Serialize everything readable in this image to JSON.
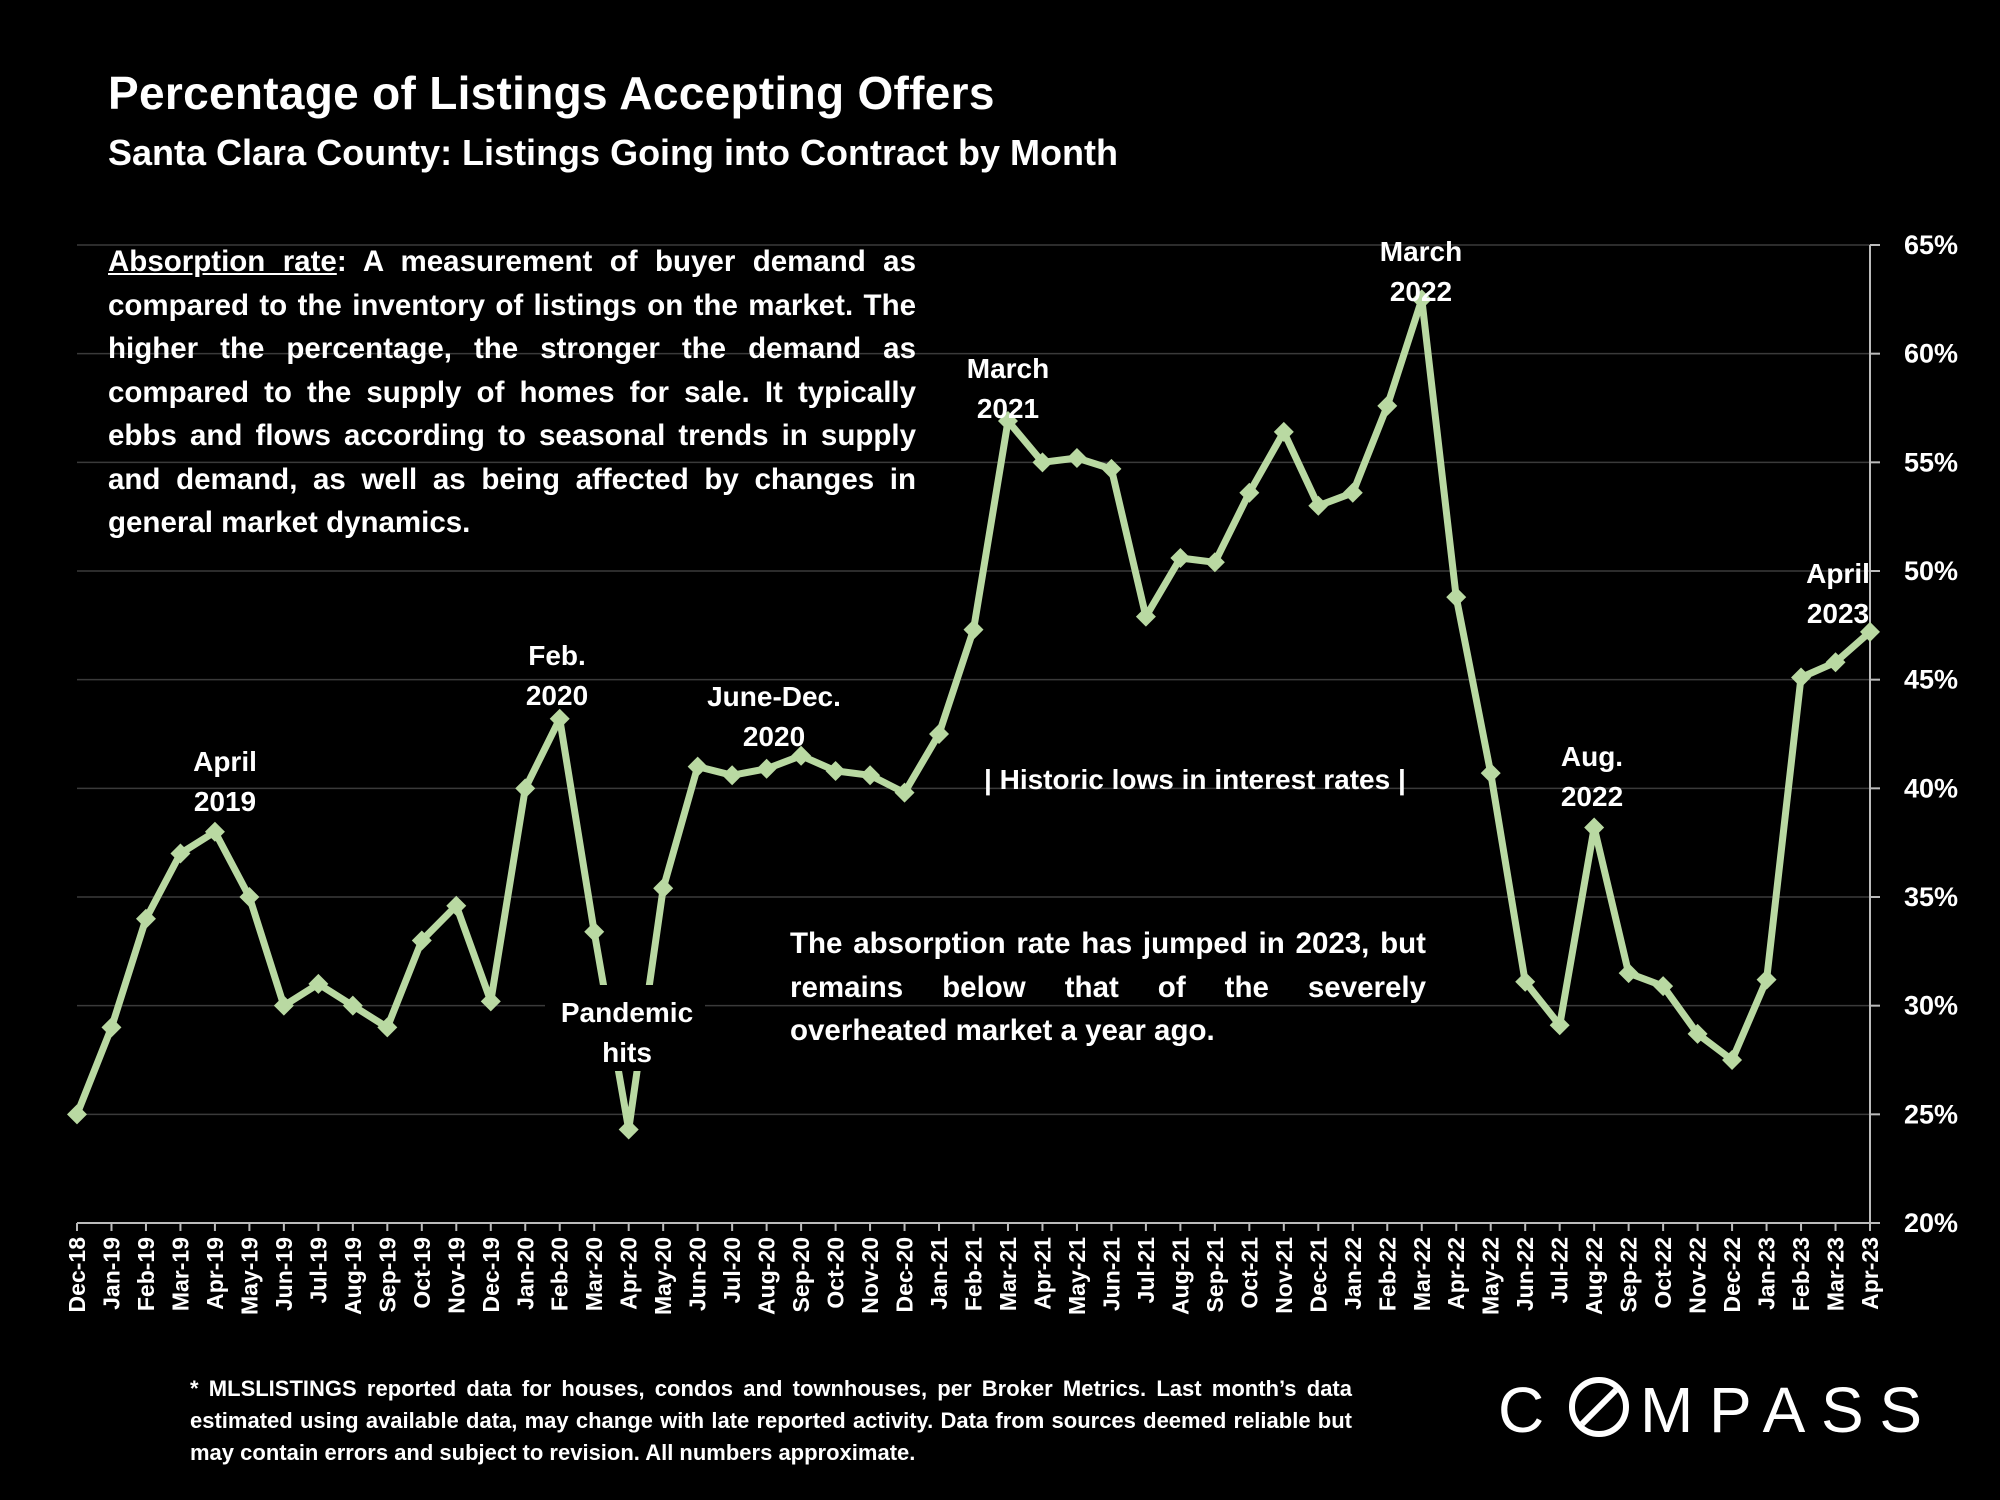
{
  "header": {
    "title": "Percentage of Listings Accepting Offers",
    "subtitle": "Santa Clara County: Listings Going into Contract by Month"
  },
  "intro": {
    "term": "Absorption rate",
    "text": ":  A measurement of buyer demand as compared to the inventory of listings on the market. The higher the percentage, the stronger the demand as compared to the supply of homes for sale. It typically ebbs and flows according to seasonal trends in supply and demand, as well as being affected by changes in general market dynamics."
  },
  "summary": "The absorption rate has jumped in 2023, but remains below that of the severely overheated market a year ago.",
  "footnote": "* MLSLISTINGS reported data for houses, condos and townhouses, per Broker Metrics. Last month’s data estimated using available data, may change with late reported activity. Data from sources deemed reliable but may contain errors and subject to revision. All numbers approximate.",
  "brand": {
    "logo": "COMPASS"
  },
  "colors": {
    "background": "#000000",
    "line": "#b9d9a2",
    "grid": "#3a3a3a",
    "text": "#ffffff"
  },
  "annotations": {
    "april_2019": "April\n2019",
    "feb_2020": "Feb.\n2020",
    "pandemic": "Pandemic\nhits",
    "june_dec_2020": "June-Dec.\n2020",
    "march_2021": "March\n2021",
    "march_2022": "March\n2022",
    "aug_2022": "Aug.\n2022",
    "april_2023": "April\n2023",
    "rates": "| Historic lows in interest rates |"
  },
  "chart_data": {
    "type": "line",
    "x": [
      "Dec-18",
      "Jan-19",
      "Feb-19",
      "Mar-19",
      "Apr-19",
      "May-19",
      "Jun-19",
      "Jul-19",
      "Aug-19",
      "Sep-19",
      "Oct-19",
      "Nov-19",
      "Dec-19",
      "Jan-20",
      "Feb-20",
      "Mar-20",
      "Apr-20",
      "May-20",
      "Jun-20",
      "Jul-20",
      "Aug-20",
      "Sep-20",
      "Oct-20",
      "Nov-20",
      "Dec-20",
      "Jan-21",
      "Feb-21",
      "Mar-21",
      "Apr-21",
      "May-21",
      "Jun-21",
      "Jul-21",
      "Aug-21",
      "Sep-21",
      "Oct-21",
      "Nov-21",
      "Dec-21",
      "Jan-22",
      "Feb-22",
      "Mar-22",
      "Apr-22",
      "May-22",
      "Jun-22",
      "Jul-22",
      "Aug-22",
      "Sep-22",
      "Oct-22",
      "Nov-22",
      "Dec-22",
      "Jan-23",
      "Feb-23",
      "Mar-23",
      "Apr-23"
    ],
    "series": [
      {
        "values": [
          25.0,
          29.0,
          34.0,
          37.0,
          38.0,
          35.0,
          30.0,
          31.0,
          30.0,
          29.0,
          33.0,
          34.6,
          30.2,
          40.0,
          43.2,
          33.4,
          24.3,
          35.4,
          41.0,
          40.6,
          40.9,
          41.5,
          40.8,
          40.6,
          39.8,
          42.5,
          47.3,
          56.9,
          55.0,
          55.2,
          54.7,
          47.9,
          50.6,
          50.4,
          53.6,
          56.4,
          53.0,
          53.6,
          57.6,
          62.5,
          48.8,
          40.7,
          31.1,
          29.1,
          38.2,
          31.5,
          30.9,
          28.7,
          27.5,
          31.2,
          45.1,
          45.8,
          47.2
        ]
      }
    ],
    "y_ticks": [
      "20%",
      "25%",
      "30%",
      "35%",
      "40%",
      "45%",
      "50%",
      "55%",
      "60%",
      "65%"
    ],
    "ylim": [
      20,
      65
    ],
    "y_axis_side": "right",
    "grid": true,
    "markers": "diamond"
  }
}
